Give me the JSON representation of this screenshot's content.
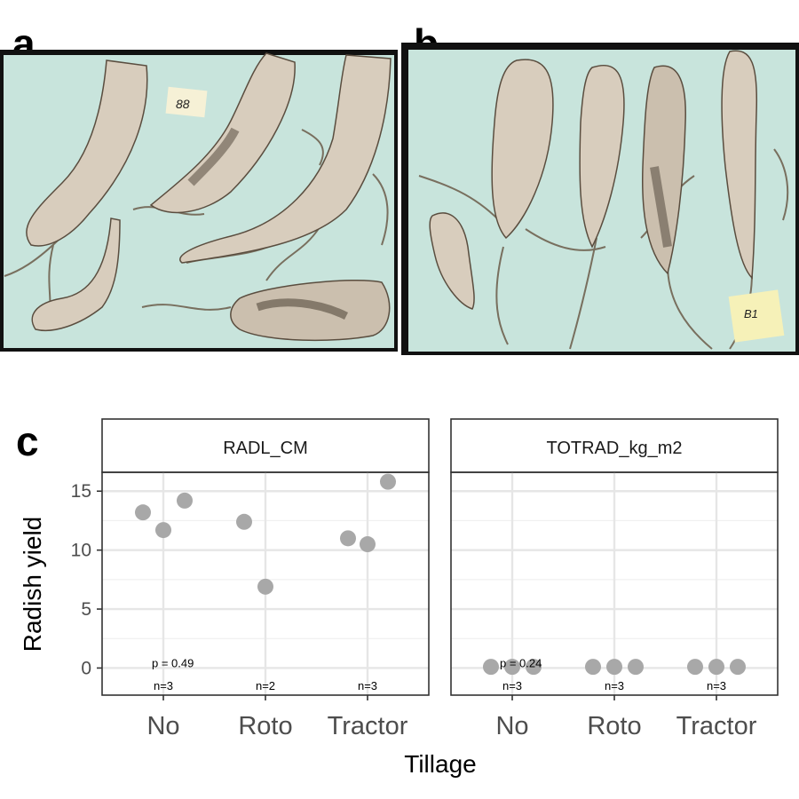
{
  "labels": {
    "a": "a",
    "b": "b",
    "c": "c"
  },
  "photo_a": {
    "tag": "88"
  },
  "photo_b": {
    "tag": "B1"
  },
  "colors": {
    "photo_bg": "#c8e4dc",
    "root": "#d8cdbd",
    "soil": "#4a3f33",
    "point": "#a8a8a8",
    "grid": "#e6e6e6",
    "strip_bg": "#ffffff"
  },
  "chart_data": {
    "type": "scatter",
    "ylabel": "Radish yield",
    "xlabel": "Tillage",
    "categories": [
      "No",
      "Roto",
      "Tractor"
    ],
    "ylim": [
      -2.3,
      16.6
    ],
    "yticks": [
      0,
      5,
      10,
      15
    ],
    "grid": true,
    "panels": [
      {
        "strip": "RADL_CM",
        "points": [
          {
            "x": "No",
            "y": 13.2
          },
          {
            "x": "No",
            "y": 11.7
          },
          {
            "x": "No",
            "y": 14.2
          },
          {
            "x": "Roto",
            "y": 12.4
          },
          {
            "x": "Roto",
            "y": 6.9
          },
          {
            "x": "Tractor",
            "y": 11.0
          },
          {
            "x": "Tractor",
            "y": 10.5
          },
          {
            "x": "Tractor",
            "y": 15.8
          }
        ],
        "pvalue": "p = 0.49",
        "counts": [
          "n=3",
          "n=2",
          "n=3"
        ]
      },
      {
        "strip": "TOTRAD_kg_m2",
        "points": [
          {
            "x": "No",
            "y": 0.1
          },
          {
            "x": "No",
            "y": 0.1
          },
          {
            "x": "No",
            "y": 0.1
          },
          {
            "x": "Roto",
            "y": 0.1
          },
          {
            "x": "Roto",
            "y": 0.1
          },
          {
            "x": "Roto",
            "y": 0.1
          },
          {
            "x": "Tractor",
            "y": 0.1
          },
          {
            "x": "Tractor",
            "y": 0.1
          },
          {
            "x": "Tractor",
            "y": 0.1
          }
        ],
        "pvalue": "p = 0.24",
        "counts": [
          "n=3",
          "n=3",
          "n=3"
        ]
      }
    ]
  }
}
